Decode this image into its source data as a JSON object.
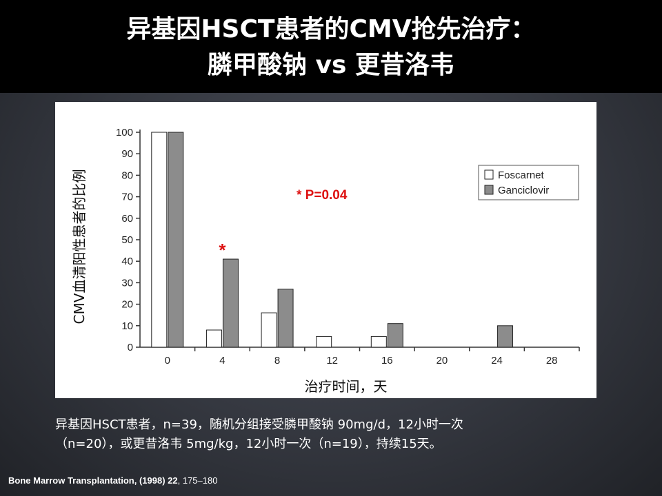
{
  "slide": {
    "title_line1": "异基因HSCT患者的CMV抢先治疗：",
    "title_line2": "膦甲酸钠 vs 更昔洛韦",
    "caption_line1": "异基因HSCT患者，n=39，随机分组接受膦甲酸钠 90mg/d，12小时一次",
    "caption_line2": "（n=20），或更昔洛韦 5mg/kg，12小时一次（n=19），持续15天。",
    "citation_bold": "Bone Marrow Transplantation, (1998) 22",
    "citation_rest": ", 175–180"
  },
  "chart_data": {
    "type": "bar",
    "categories": [
      "0",
      "4",
      "8",
      "12",
      "16",
      "20",
      "24",
      "28"
    ],
    "series": [
      {
        "name": "Foscarnet",
        "values": [
          100,
          8,
          16,
          5,
          5,
          0,
          0,
          0
        ],
        "color": "#ffffff"
      },
      {
        "name": "Ganciclovir",
        "values": [
          100,
          41,
          27,
          0,
          11,
          0,
          10,
          0
        ],
        "color": "#8c8c8c"
      }
    ],
    "xlabel": "治疗时间，天",
    "ylabel": "CMV血清阳性患者的比例",
    "ylim": [
      0,
      100
    ],
    "yticks": [
      0,
      10,
      20,
      30,
      40,
      50,
      60,
      70,
      80,
      90,
      100
    ],
    "legend_position": "top-right",
    "annotations": [
      {
        "text": "* P=0.04",
        "color": "#dd1111"
      },
      {
        "text": "*",
        "category": "4",
        "color": "#dd1111"
      }
    ]
  }
}
